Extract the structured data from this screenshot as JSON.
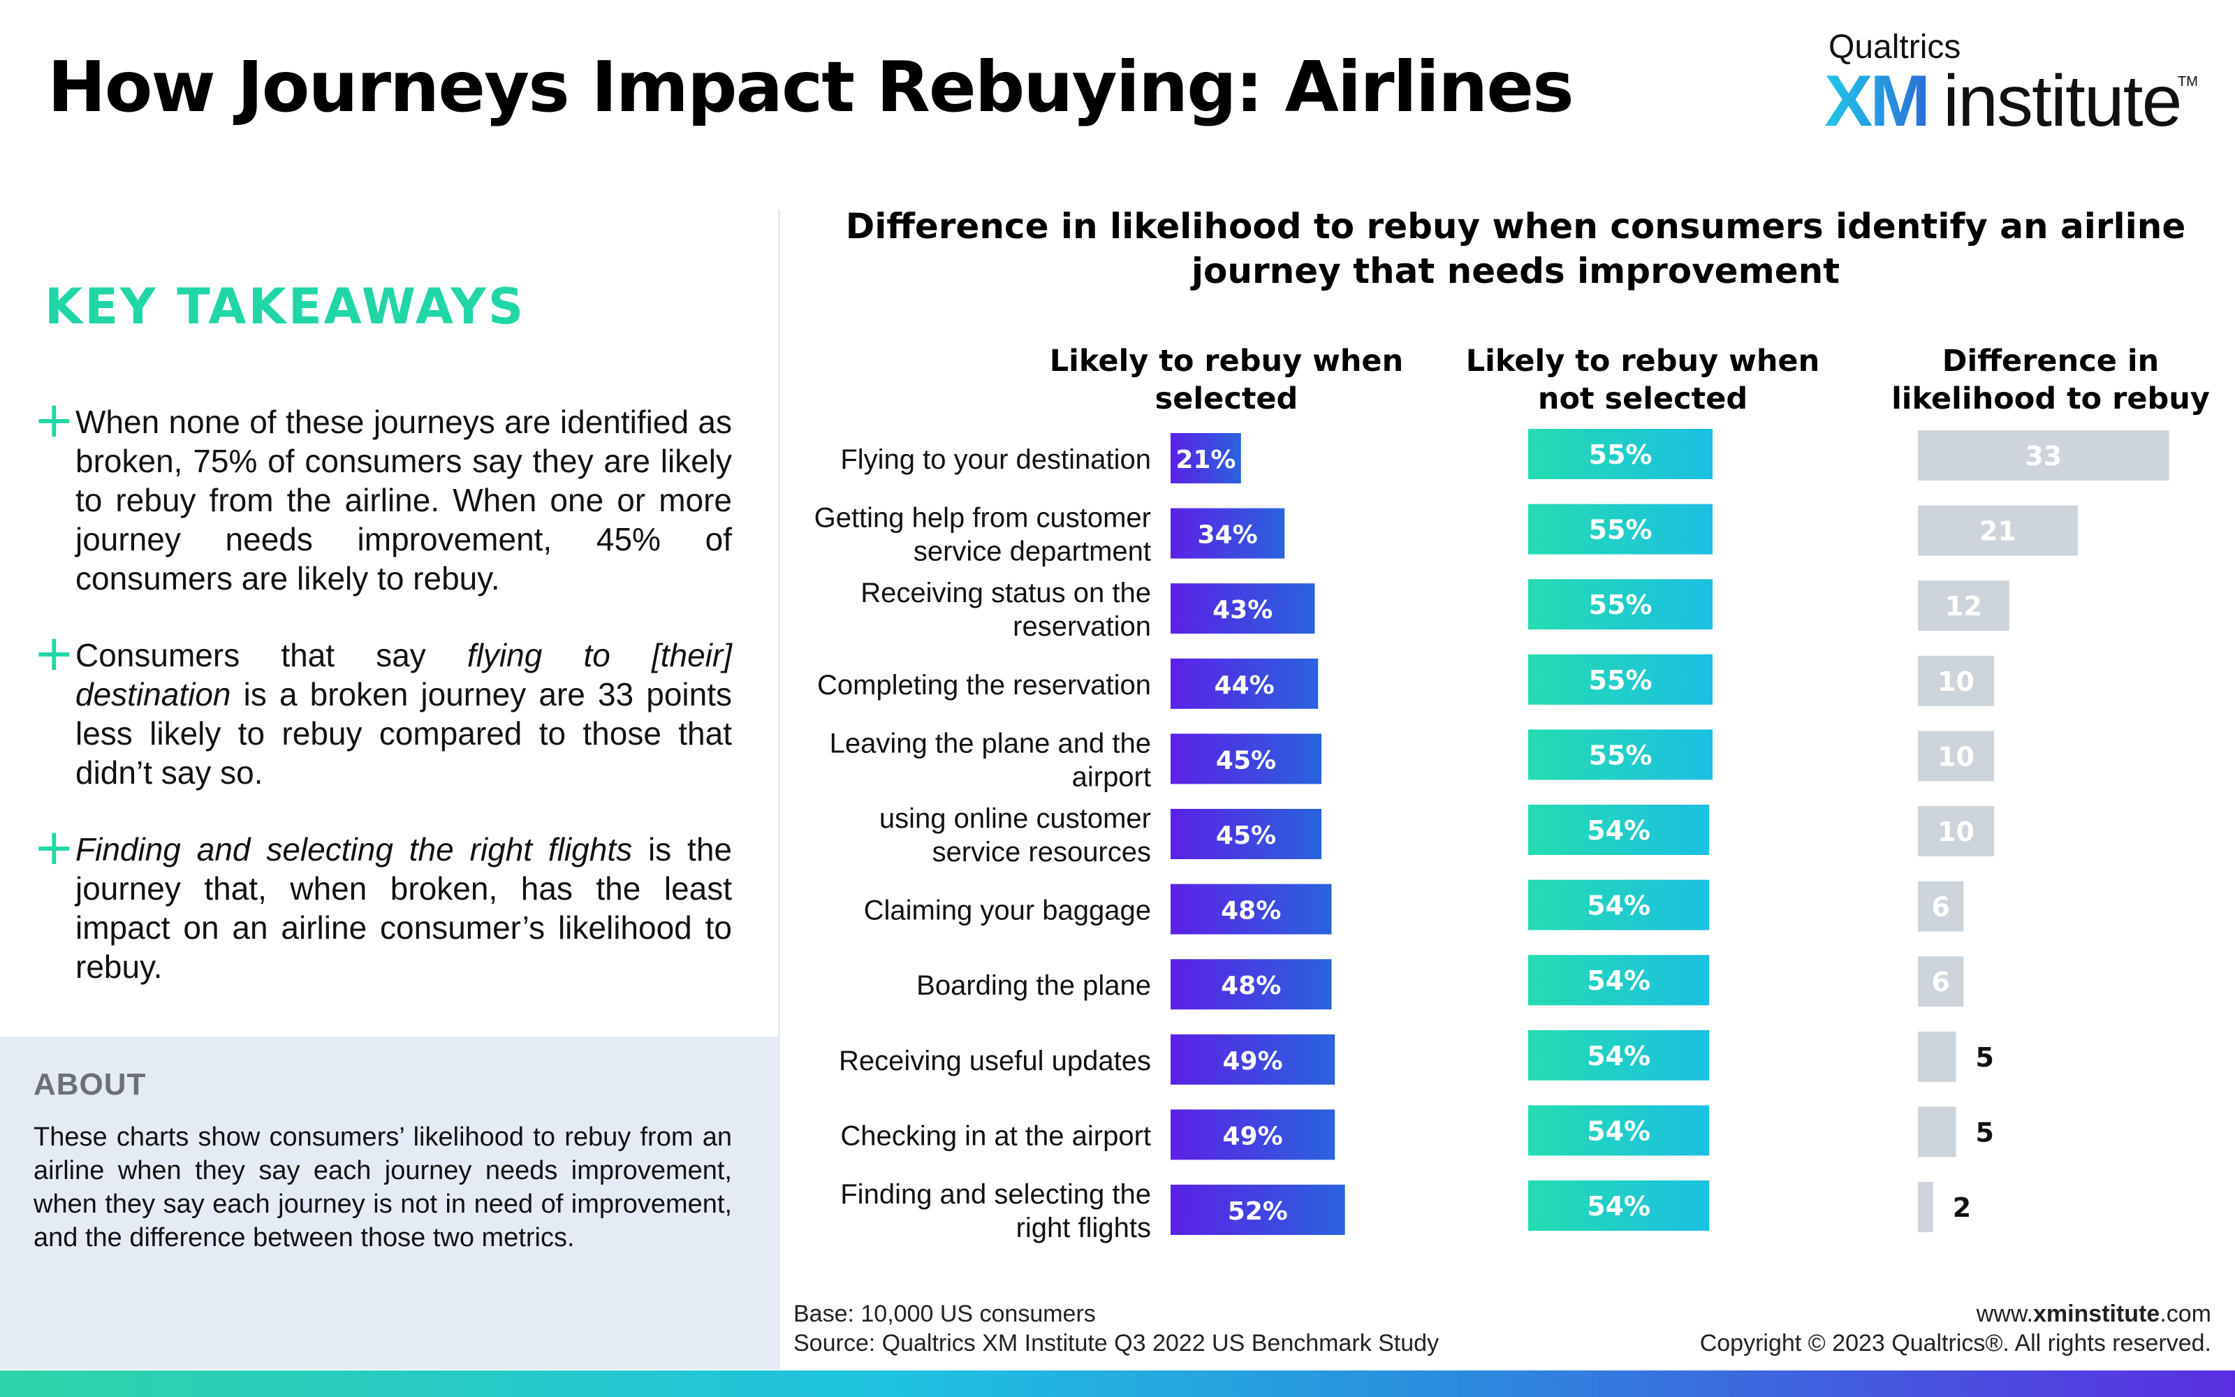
{
  "header": {
    "title": "How Journeys Impact Rebuying: Airlines",
    "logo_brand": "Qualtrics",
    "logo_xm": "XM",
    "logo_institute": "institute",
    "logo_tm": "TM"
  },
  "takeaways": {
    "title": "KEY TAKEAWAYS",
    "plus_glyph": "+",
    "items": [
      {
        "text": "When none of these journeys are identified as broken, 75% of consumers say they are likely to rebuy from the airline. When one or more journey needs improvement, 45% of consumers are likely to rebuy."
      },
      {
        "part1": "Consumers that say ",
        "italic": "flying to [their] destination",
        "part2": " is a broken journey are 33 points less likely to rebuy compared to those that didn’t say so."
      },
      {
        "italic": "Finding and selecting the right flights",
        "part2": " is the journey that, when broken, has the least impact on an airline consumer’s likelihood to rebuy."
      }
    ]
  },
  "about": {
    "title": "ABOUT",
    "text": "These charts show consumers’ likelihood to rebuy from an airline when they say each journey needs improvement, when they say each journey is not in need of improvement, and the difference between those two metrics."
  },
  "footer": {
    "base": "Base: 10,000 US consumers",
    "source": "Source: Qualtrics XM Institute Q3 2022 US Benchmark Study",
    "url_prefix": "www.",
    "url_bold": "xminstitute",
    "url_suffix": ".com",
    "copyright": "Copyright © 2023 Qualtrics®. All rights reserved."
  },
  "colors": {
    "purple_start": "#5b21e6",
    "purple_end": "#2a63dd",
    "teal_start": "#24dcb0",
    "teal_end": "#1cbfe2",
    "gray": "#cdd4db",
    "accent": "#20d6a6"
  },
  "chart_data": {
    "type": "bar",
    "title": "Difference in likelihood to rebuy when consumers identify an airline journey that needs improvement",
    "categories": [
      "Flying to your destination",
      "Getting help from customer service department",
      "Receiving status on the reservation",
      "Completing the reservation",
      "Leaving the plane and the airport",
      "using online customer service resources",
      "Claiming your baggage",
      "Boarding the plane",
      "Receiving useful updates",
      "Checking in at the airport",
      "Finding and selecting the right flights"
    ],
    "category_lines": [
      [
        "Flying to your destination"
      ],
      [
        "Getting help from customer",
        "service department"
      ],
      [
        "Receiving status on the",
        "reservation"
      ],
      [
        "Completing the reservation"
      ],
      [
        "Leaving the plane and the",
        "airport"
      ],
      [
        "using online customer",
        "service resources"
      ],
      [
        "Claiming your baggage"
      ],
      [
        "Boarding the plane"
      ],
      [
        "Receiving useful updates"
      ],
      [
        "Checking in at the airport"
      ],
      [
        "Finding and selecting the",
        "right flights"
      ]
    ],
    "series": [
      {
        "name": "Likely to rebuy when selected",
        "header": [
          "Likely to rebuy when",
          "selected"
        ],
        "values": [
          21,
          34,
          43,
          44,
          45,
          45,
          48,
          48,
          49,
          49,
          52
        ],
        "unit": "%"
      },
      {
        "name": "Likely to rebuy when not selected",
        "header": [
          "Likely to rebuy when",
          "not selected"
        ],
        "values": [
          55,
          55,
          55,
          55,
          55,
          54,
          54,
          54,
          54,
          54,
          54
        ],
        "unit": "%"
      },
      {
        "name": "Difference in likelihood to rebuy",
        "header": [
          "Difference in",
          "likelihood to rebuy"
        ],
        "values": [
          33,
          21,
          12,
          10,
          10,
          10,
          6,
          6,
          5,
          5,
          2
        ],
        "unit": ""
      }
    ]
  }
}
